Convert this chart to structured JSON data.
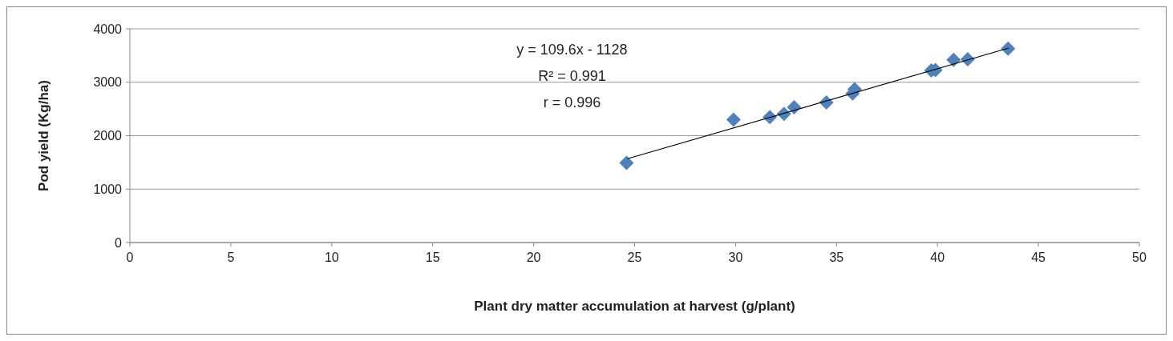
{
  "chart_data": {
    "type": "scatter",
    "xlabel": "Plant dry matter accumulation at harvest (g/plant)",
    "ylabel": "Pod yield (Kg/ha)",
    "annotations": [
      "y = 109.6x - 1128",
      "R² = 0.991",
      "r = 0.996"
    ],
    "xlim": [
      0,
      50
    ],
    "xticks": [
      0,
      5,
      10,
      15,
      20,
      25,
      30,
      35,
      40,
      45,
      50
    ],
    "ylim": [
      0,
      4000
    ],
    "yticks": [
      0,
      1000,
      2000,
      3000,
      4000
    ],
    "grid": "y",
    "series": [
      {
        "color": "#4f81bd",
        "marker": "diamond",
        "x": [
          24.6,
          29.9,
          31.7,
          32.4,
          32.9,
          34.5,
          35.8,
          35.9,
          39.7,
          39.9,
          40.8,
          41.5,
          43.5
        ],
        "values": [
          1490,
          2300,
          2350,
          2410,
          2530,
          2620,
          2790,
          2870,
          3220,
          3230,
          3420,
          3430,
          3630
        ]
      },
      {
        "type": "line",
        "color": "#000000",
        "marker": "none",
        "x": [
          24.65,
          43.53
        ],
        "values": [
          1570,
          3640
        ]
      }
    ]
  }
}
